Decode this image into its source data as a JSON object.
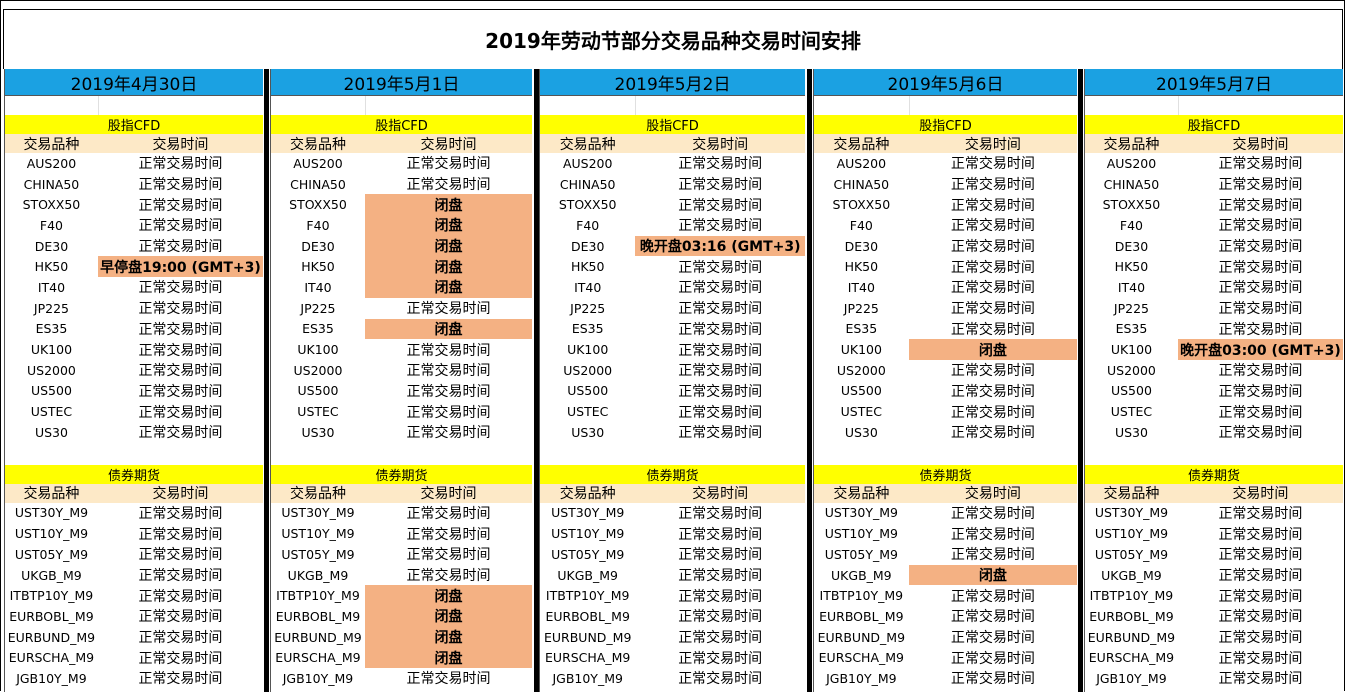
{
  "title": "2019年劳动节部分交易品种交易时间安排",
  "colors": {
    "header_bg": "#1ba1e2",
    "section_bg": "#ffff00",
    "colhead_bg": "#fde9c7",
    "highlight_bg": "#f4b183"
  },
  "labels": {
    "cfd_section": "股指CFD",
    "bond_section": "债券期货",
    "col_symbol": "交易品种",
    "col_time": "交易时间"
  },
  "cfd_symbols": [
    "AUS200",
    "CHINA50",
    "STOXX50",
    "F40",
    "DE30",
    "HK50",
    "IT40",
    "JP225",
    "ES35",
    "UK100",
    "US2000",
    "US500",
    "USTEC",
    "US30"
  ],
  "bond_symbols": [
    "UST30Y_M9",
    "UST10Y_M9",
    "UST05Y_M9",
    "UKGB_M9",
    "ITBTP10Y_M9",
    "EURBOBL_M9",
    "EURBUND_M9",
    "EURSCHA_M9",
    "JGB10Y_M9"
  ],
  "days": [
    {
      "date": "2019年4月30日",
      "cfd_times": [
        "正常交易时间",
        "正常交易时间",
        "正常交易时间",
        "正常交易时间",
        "正常交易时间",
        "早停盘19:00 (GMT+3)",
        "正常交易时间",
        "正常交易时间",
        "正常交易时间",
        "正常交易时间",
        "正常交易时间",
        "正常交易时间",
        "正常交易时间",
        "正常交易时间"
      ],
      "bond_times": [
        "正常交易时间",
        "正常交易时间",
        "正常交易时间",
        "正常交易时间",
        "正常交易时间",
        "正常交易时间",
        "正常交易时间",
        "正常交易时间",
        "正常交易时间"
      ]
    },
    {
      "date": "2019年5月1日",
      "cfd_times": [
        "正常交易时间",
        "正常交易时间",
        "闭盘",
        "闭盘",
        "闭盘",
        "闭盘",
        "闭盘",
        "正常交易时间",
        "闭盘",
        "正常交易时间",
        "正常交易时间",
        "正常交易时间",
        "正常交易时间",
        "正常交易时间"
      ],
      "bond_times": [
        "正常交易时间",
        "正常交易时间",
        "正常交易时间",
        "正常交易时间",
        "闭盘",
        "闭盘",
        "闭盘",
        "闭盘",
        "正常交易时间"
      ]
    },
    {
      "date": "2019年5月2日",
      "cfd_times": [
        "正常交易时间",
        "正常交易时间",
        "正常交易时间",
        "正常交易时间",
        "晚开盘03:16 (GMT+3)",
        "正常交易时间",
        "正常交易时间",
        "正常交易时间",
        "正常交易时间",
        "正常交易时间",
        "正常交易时间",
        "正常交易时间",
        "正常交易时间",
        "正常交易时间"
      ],
      "bond_times": [
        "正常交易时间",
        "正常交易时间",
        "正常交易时间",
        "正常交易时间",
        "正常交易时间",
        "正常交易时间",
        "正常交易时间",
        "正常交易时间",
        "正常交易时间"
      ]
    },
    {
      "date": "2019年5月6日",
      "cfd_times": [
        "正常交易时间",
        "正常交易时间",
        "正常交易时间",
        "正常交易时间",
        "正常交易时间",
        "正常交易时间",
        "正常交易时间",
        "正常交易时间",
        "正常交易时间",
        "闭盘",
        "正常交易时间",
        "正常交易时间",
        "正常交易时间",
        "正常交易时间"
      ],
      "bond_times": [
        "正常交易时间",
        "正常交易时间",
        "正常交易时间",
        "闭盘",
        "正常交易时间",
        "正常交易时间",
        "正常交易时间",
        "正常交易时间",
        "正常交易时间"
      ]
    },
    {
      "date": "2019年5月7日",
      "cfd_times": [
        "正常交易时间",
        "正常交易时间",
        "正常交易时间",
        "正常交易时间",
        "正常交易时间",
        "正常交易时间",
        "正常交易时间",
        "正常交易时间",
        "正常交易时间",
        "晚开盘03:00 (GMT+3)",
        "正常交易时间",
        "正常交易时间",
        "正常交易时间",
        "正常交易时间"
      ],
      "bond_times": [
        "正常交易时间",
        "正常交易时间",
        "正常交易时间",
        "正常交易时间",
        "正常交易时间",
        "正常交易时间",
        "正常交易时间",
        "正常交易时间",
        "正常交易时间"
      ]
    }
  ]
}
